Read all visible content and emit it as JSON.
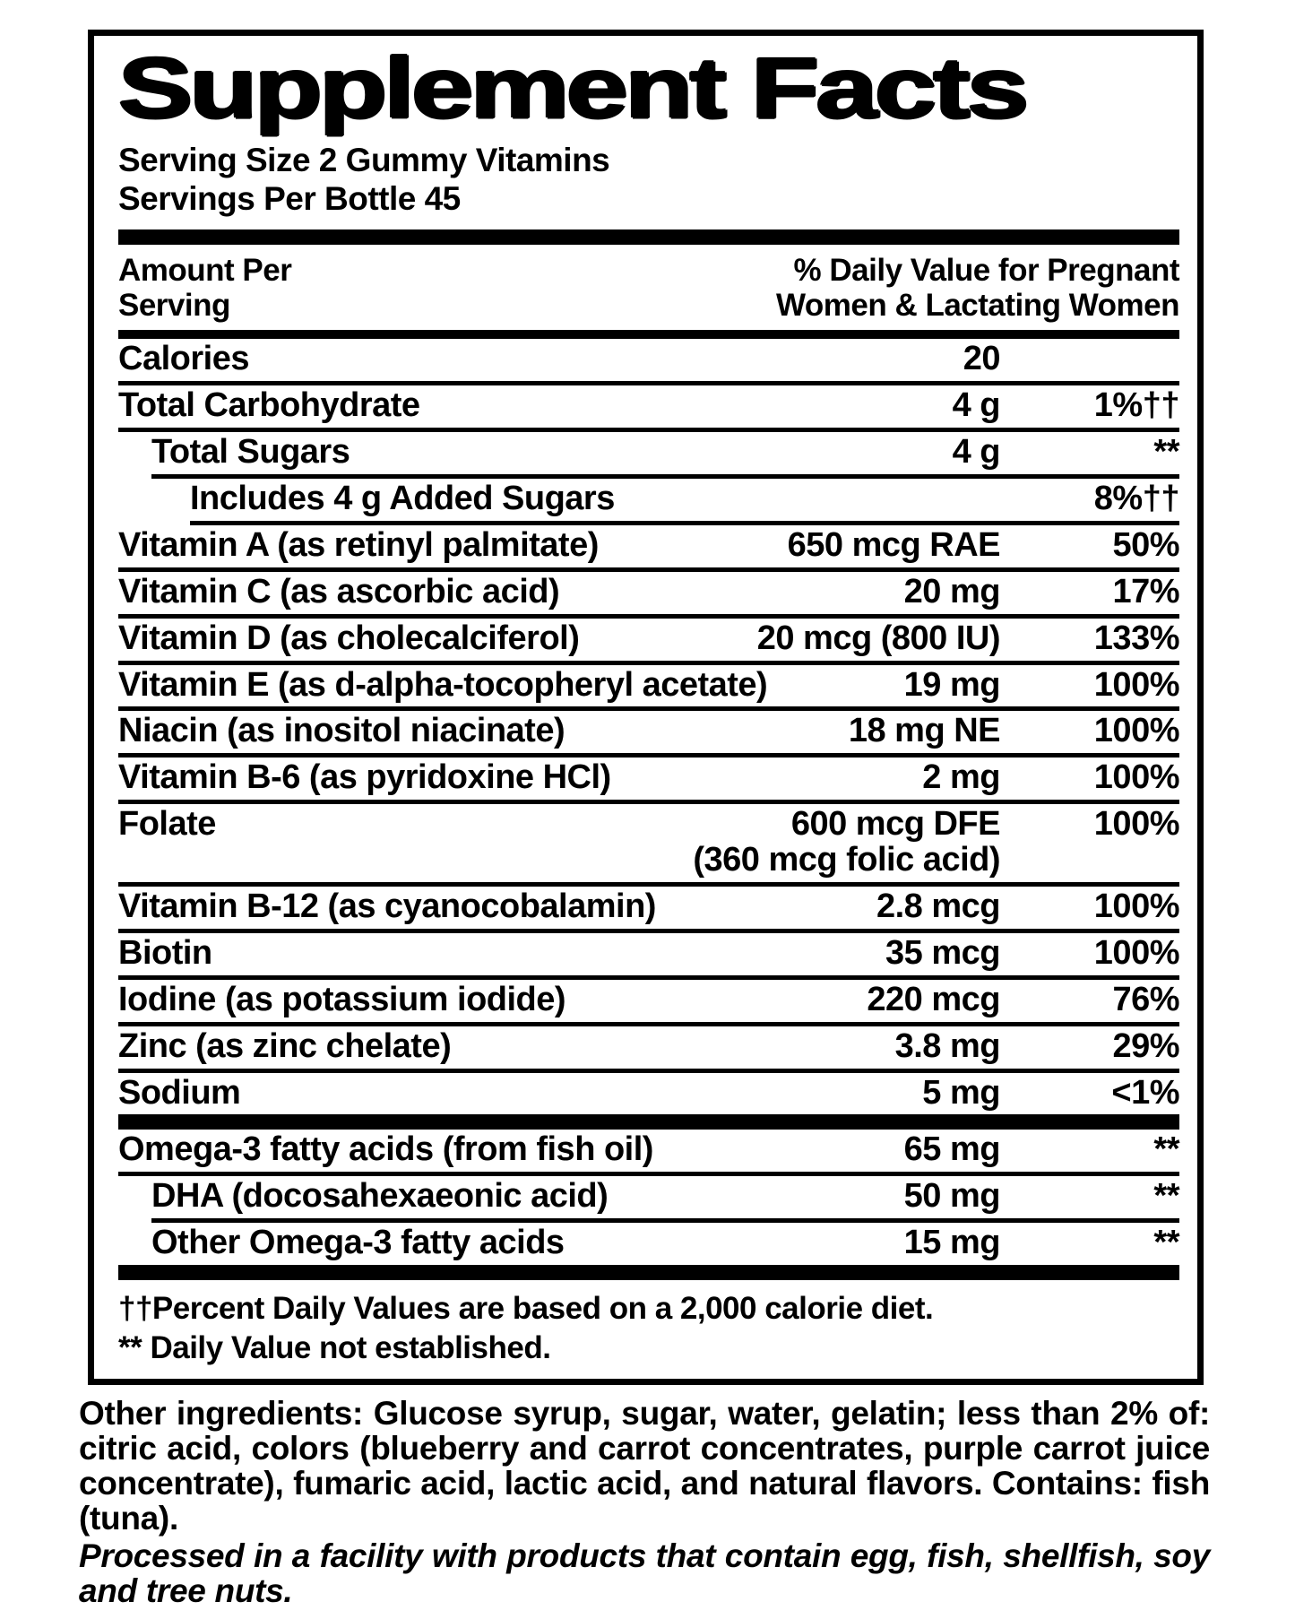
{
  "title": "Supplement Facts",
  "serving": {
    "size_line": "Serving Size 2 Gummy Vitamins",
    "per_bottle_line": "Servings Per Bottle 45"
  },
  "header": {
    "amount_line1": "Amount Per",
    "amount_line2": "Serving",
    "dv_line1": "% Daily Value for Pregnant",
    "dv_line2": "Women & Lactating Women"
  },
  "table": {
    "rows": [
      {
        "name": "Calories",
        "amount": "20",
        "dv": ""
      },
      {
        "name": "Total Carbohydrate",
        "amount": "4 g",
        "dv": "1%††"
      },
      {
        "name": "Total Sugars",
        "amount": "4 g",
        "dv": "**"
      },
      {
        "name": "Includes 4 g Added Sugars",
        "amount": "",
        "dv": "8%††"
      },
      {
        "name": "Vitamin A (as retinyl palmitate)",
        "amount": "650 mcg RAE",
        "dv": "50%"
      },
      {
        "name": "Vitamin C (as ascorbic acid)",
        "amount": "20 mg",
        "dv": "17%"
      },
      {
        "name": "Vitamin D (as cholecalciferol)",
        "amount": "20 mcg (800 IU)",
        "dv": "133%"
      },
      {
        "name": "Vitamin E (as d-alpha-tocopheryl acetate)",
        "amount": "19 mg",
        "dv": "100%"
      },
      {
        "name": "Niacin (as inositol niacinate)",
        "amount": "18 mg NE",
        "dv": "100%"
      },
      {
        "name": "Vitamin B-6 (as pyridoxine HCl)",
        "amount": "2 mg",
        "dv": "100%"
      },
      {
        "name": "Folate",
        "amount": "600 mcg DFE",
        "amount2": "(360 mcg folic acid)",
        "dv": "100%"
      },
      {
        "name": "Vitamin B-12 (as cyanocobalamin)",
        "amount": "2.8 mcg",
        "dv": "100%"
      },
      {
        "name": "Biotin",
        "amount": "35 mcg",
        "dv": "100%"
      },
      {
        "name": "Iodine (as potassium iodide)",
        "amount": "220 mcg",
        "dv": "76%"
      },
      {
        "name": "Zinc (as zinc chelate)",
        "amount": "3.8 mg",
        "dv": "29%"
      },
      {
        "name": "Sodium",
        "amount": "5 mg",
        "dv": "<1%"
      }
    ]
  },
  "omega": {
    "rows": [
      {
        "name": "Omega-3 fatty acids (from fish oil)",
        "amount": "65 mg",
        "dv": "**"
      },
      {
        "name": "DHA (docosahexaeonic acid)",
        "amount": "50 mg",
        "dv": "**"
      },
      {
        "name": "Other Omega-3 fatty acids",
        "amount": "15 mg",
        "dv": "**"
      }
    ]
  },
  "footnotes": {
    "line1": "††Percent Daily Values are based on a 2,000 calorie diet.",
    "line2": "** Daily Value not established."
  },
  "other_ingredients": "Other ingredients: Glucose syrup, sugar, water, gelatin; less than 2% of: citric acid, colors (blueberry and carrot concentrates, purple carrot juice concentrate), fumaric acid, lactic acid, and natural flavors. Contains: fish (tuna).",
  "allergen_note": "Processed in a facility with products that contain egg, fish, shellfish, soy and tree nuts.",
  "colors": {
    "ink": "#000000",
    "paper": "#ffffff"
  }
}
